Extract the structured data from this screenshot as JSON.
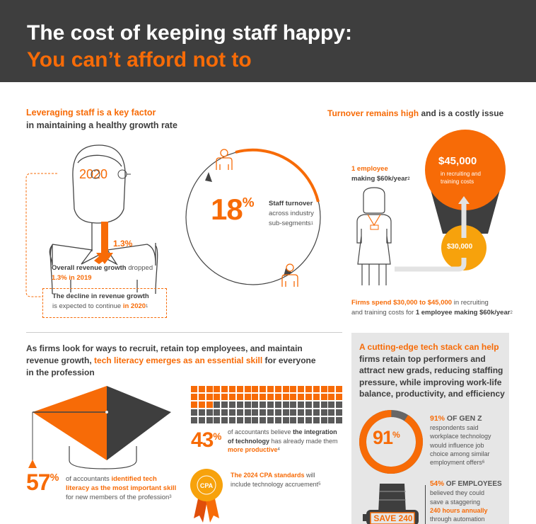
{
  "header": {
    "title_line1": "The cost of keeping staff happy:",
    "title_line2": "You can’t afford not to"
  },
  "colors": {
    "accent": "#f76b07",
    "amber": "#f7a20c",
    "dark": "#3e3e3e",
    "panel": "#e6e6e6"
  },
  "growth": {
    "heading_orange": "Leveraging staff is a key factor",
    "heading_dark": "in maintaining a healthy growth rate",
    "glasses_text": "2020",
    "arrow_label": "1.3%",
    "stat_bold": "Overall revenue growth",
    "stat_rest": " dropped",
    "stat_orange": "1.3% in 2019",
    "box_bold": "The decline in revenue growth",
    "box_rest": "is expected to continue ",
    "box_orange": "in 2020",
    "box_note": "1"
  },
  "turnover_circle": {
    "value": "18",
    "unit": "%",
    "label_bold": "Staff turnover",
    "label_line2": "across industry",
    "label_line3": "sub-segments",
    "note": "1",
    "fraction": 0.18
  },
  "cost": {
    "heading_orange": "Turnover remains high",
    "heading_dark": " and is a costly issue",
    "employee_orange": "1 employee",
    "employee_dark": "making $60k/year",
    "employee_note": "2",
    "high_value": "$45,000",
    "high_label1": "in recruiting and",
    "high_label2": "training costs",
    "low_value": "$30,000",
    "bottom_orange": "Firms spend $30,000 to $45,000",
    "bottom_rest1": " in recruiting",
    "bottom_rest2": "and training costs for ",
    "bottom_bold": "1 employee making $60k/year",
    "bottom_note": "2"
  },
  "tech": {
    "heading_1": "As firms look for ways to recruit, retain top employees, and maintain",
    "heading_2a": "revenue growth, ",
    "heading_2b": "tech literacy emerges as an essential skill",
    "heading_2c": " for everyone",
    "heading_3": "in the profession",
    "stat57_value": "57",
    "stat57_unit": "%",
    "stat57_a": "of accountants ",
    "stat57_b": "identified tech",
    "stat57_c": "literacy as the most important skill",
    "stat57_d": "for new members of the profession",
    "stat57_note": "3",
    "grid_percent": 43,
    "stat43_value": "43",
    "stat43_unit": "%",
    "stat43_a": "of accountants believe ",
    "stat43_b": "the integration",
    "stat43_c": "of technology",
    "stat43_d": " has already made them",
    "stat43_e": "more productive",
    "stat43_note": "4",
    "cpa_badge": "CPA",
    "cpa_orange": "The 2024 CPA standards",
    "cpa_rest1": " will",
    "cpa_rest2": "include technology accruement",
    "cpa_note": "5"
  },
  "panel": {
    "heading_orange": "A cutting-edge tech stack can help",
    "heading_lines": [
      "firms retain top performers and",
      "attract new grads, reducing staffing",
      "pressure, while improving work-life",
      "balance, productivity, and efficiency"
    ],
    "donut_value": "91",
    "donut_unit": "%",
    "donut_percent": 91,
    "genz_orange": "91%",
    "genz_dark": " OF GEN Z",
    "genz_lines": [
      "respondents said",
      "workplace technology",
      "would influence job",
      "choice among similar",
      "employment offers"
    ],
    "genz_note": "6",
    "emp_orange": "54%",
    "emp_dark": " OF EMPLOYEES",
    "emp_line1": "believed they could",
    "emp_line2": "save a staggering",
    "emp_orange2": "240 hours annually",
    "emp_line4": "through automation",
    "watch_text": "SAVE 240"
  }
}
